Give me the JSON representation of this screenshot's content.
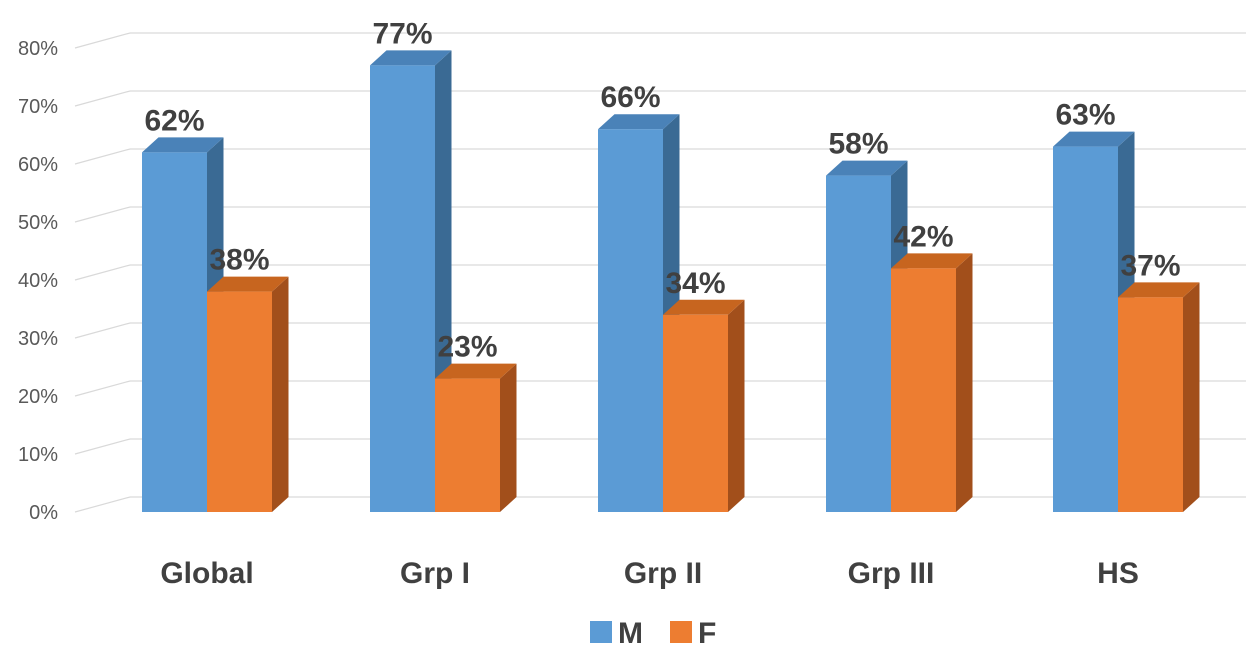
{
  "chart_data": {
    "type": "bar",
    "categories": [
      "Global",
      "Grp I",
      "Grp II",
      "Grp III",
      "HS"
    ],
    "series": [
      {
        "name": "M",
        "values": [
          62,
          77,
          66,
          58,
          63
        ],
        "labels": [
          "62%",
          "77%",
          "66%",
          "58%",
          "63%"
        ],
        "color": "#5B9BD5",
        "side_color": "#3A6A94",
        "top_color": "#4A82B8"
      },
      {
        "name": "F",
        "values": [
          38,
          23,
          34,
          42,
          37
        ],
        "labels": [
          "38%",
          "23%",
          "34%",
          "42%",
          "37%"
        ],
        "color": "#ED7D31",
        "side_color": "#A24F1B",
        "top_color": "#C7651F"
      }
    ],
    "y_ticks": [
      "0%",
      "10%",
      "20%",
      "30%",
      "40%",
      "50%",
      "60%",
      "70%",
      "80%"
    ],
    "ylim": [
      0,
      85
    ],
    "grid": true,
    "legend_position": "bottom",
    "title": "",
    "xlabel": "",
    "ylabel": ""
  }
}
